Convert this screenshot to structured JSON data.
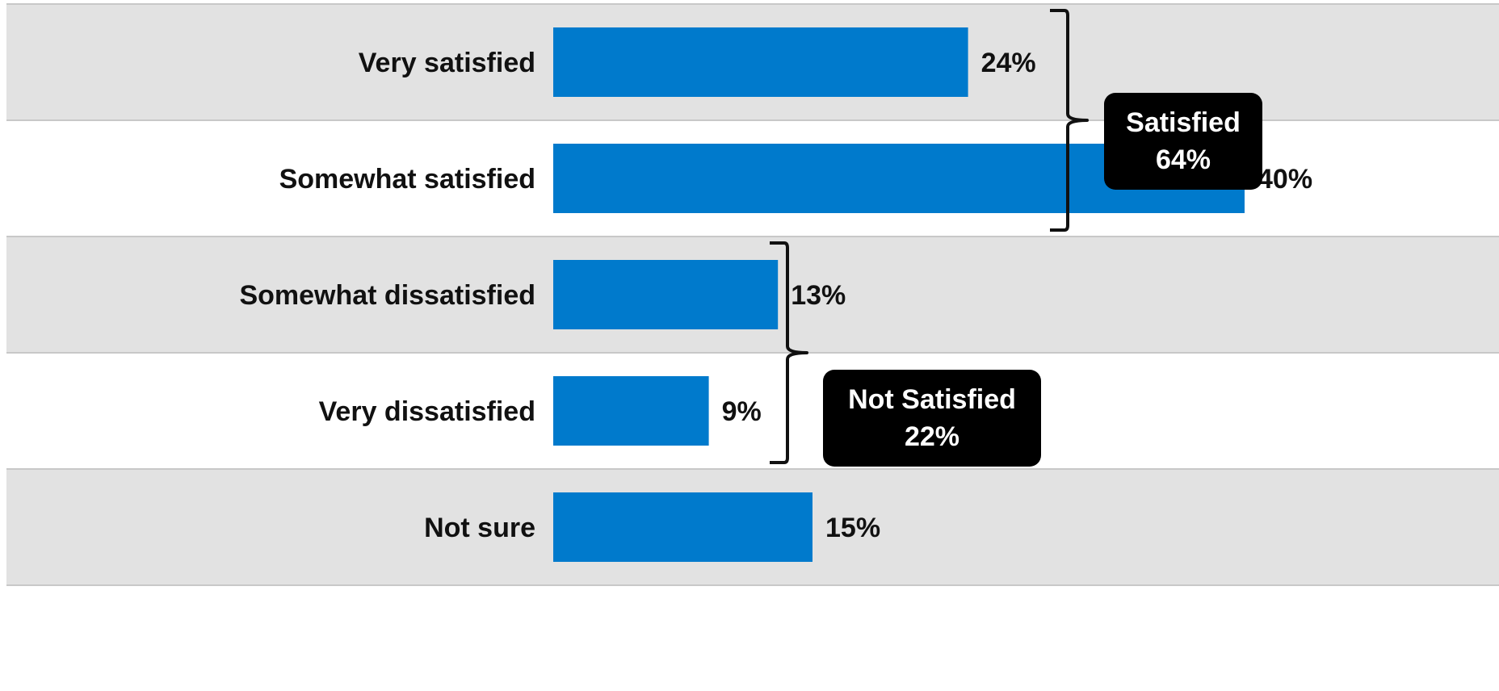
{
  "chart_data": {
    "type": "bar",
    "orientation": "horizontal",
    "categories": [
      "Very satisfied",
      "Somewhat satisfied",
      "Somewhat dissatisfied",
      "Very dissatisfied",
      "Not sure"
    ],
    "values": [
      24,
      40,
      13,
      9,
      15
    ],
    "value_labels": [
      "24%",
      "40%",
      "13%",
      "9%",
      "15%"
    ],
    "title": "",
    "xlabel": "",
    "ylabel": "",
    "xlim": [
      0,
      100
    ],
    "grid": false,
    "legend": "none",
    "groups": [
      {
        "label_line1": "Satisfied",
        "label_line2": "64%",
        "members": [
          0,
          1
        ],
        "value": 64
      },
      {
        "label_line1": "Not Satisfied",
        "label_line2": "22%",
        "members": [
          2,
          3
        ],
        "value": 22
      }
    ]
  },
  "colors": {
    "bar": "#007ACC",
    "band_shaded": "#E2E2E2",
    "band_plain": "#FFFFFF",
    "band_line": "#C8C8C8",
    "text": "#111111",
    "callout_bg": "#000000",
    "callout_text": "#FFFFFF"
  }
}
